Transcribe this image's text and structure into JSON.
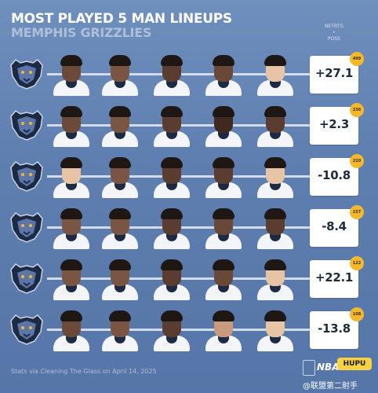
{
  "header": {
    "title": "MOST PLAYED 5 MAN LINEUPS",
    "subtitle": "MEMPHIS GRIZZLIES",
    "metric_top": "NETRTG",
    "metric_sep": "•",
    "metric_bottom": "POSS"
  },
  "lineups": [
    {
      "net_rating": "+27.1",
      "possessions": "499"
    },
    {
      "net_rating": "+2.3",
      "possessions": "236"
    },
    {
      "net_rating": "-10.8",
      "possessions": "220"
    },
    {
      "net_rating": "-8.4",
      "possessions": "157"
    },
    {
      "net_rating": "+22.1",
      "possessions": "122"
    },
    {
      "net_rating": "-13.8",
      "possessions": "108"
    }
  ],
  "footer": {
    "source": "Stats via Cleaning The Glass on April 14, 2025",
    "watermark": "@联盟第二射手"
  },
  "brand": {
    "nba_text": "NBA",
    "hupu_text": "HUPU"
  },
  "colors": {
    "background": "#5e7fb0",
    "value_box": "#ffffff",
    "badge": "#f5b82a",
    "logo_navy": "#1d2a44",
    "logo_blue": "#5d76a9"
  }
}
